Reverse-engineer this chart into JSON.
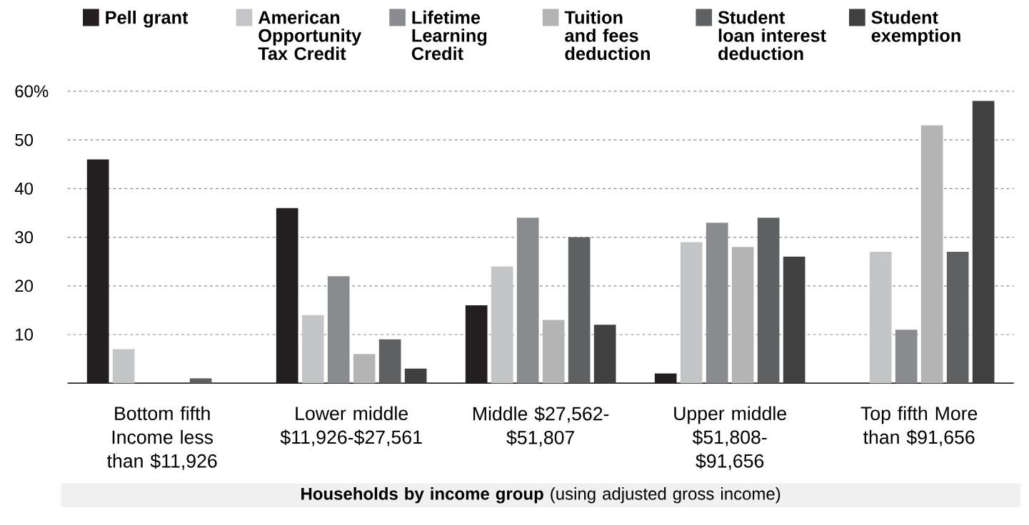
{
  "chart_data": {
    "type": "bar",
    "xlabel": "**Households by income group** (using adjusted gross income)",
    "categories": [
      "Bottom fifth Income less than $11,926",
      "Lower middle $11,926-$27,561",
      "Middle $27,562-$51,807",
      "Upper middle $51,808-$91,656",
      "Top fifth More than $91,656"
    ],
    "series": [
      {
        "name": "Pell grant",
        "color": "#231f20",
        "values": [
          46,
          36,
          16,
          2,
          0
        ]
      },
      {
        "name": "American Opportunity Tax Credit",
        "color": "#c4c5c7",
        "values": [
          7,
          14,
          24,
          29,
          27
        ]
      },
      {
        "name": "Lifetime Learning Credit",
        "color": "#8a8b8e",
        "values": [
          0,
          22,
          34,
          33,
          11
        ]
      },
      {
        "name": "Tuition and fees deduction",
        "color": "#b4b4b4",
        "values": [
          0,
          6,
          13,
          28,
          53
        ]
      },
      {
        "name": "Student loan interest deduction",
        "color": "#5f6062",
        "values": [
          1,
          9,
          30,
          34,
          27
        ]
      },
      {
        "name": "Student exemption",
        "color": "#404040",
        "values": [
          0,
          3,
          12,
          26,
          58
        ]
      }
    ],
    "ylim": [
      0,
      60
    ],
    "yticks": [
      10,
      20,
      30,
      40,
      50,
      {
        "value": 60,
        "label": "60%"
      }
    ],
    "grid": "y",
    "legend": "top"
  }
}
